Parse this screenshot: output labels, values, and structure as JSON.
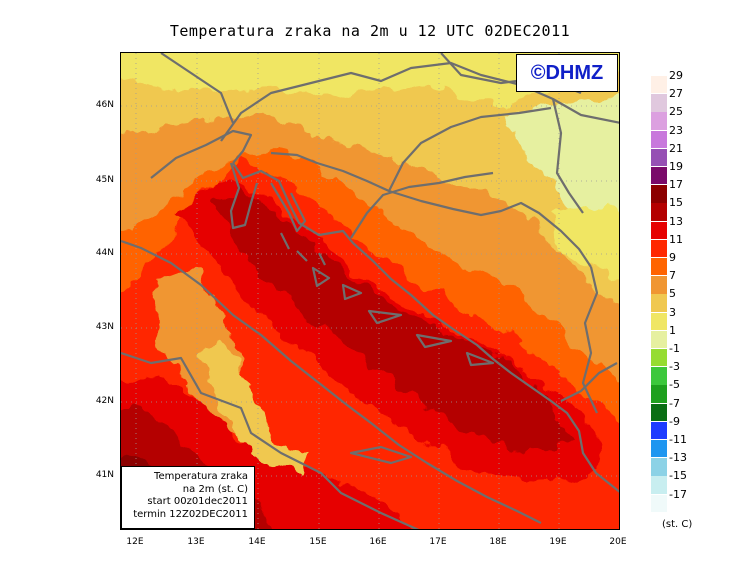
{
  "title": "Temperatura zraka na 2m u 12 UTC 02DEC2011",
  "logo": "©DHMZ",
  "info_box": [
    "Temperatura zraka",
    "na 2m (st. C)",
    "start 00z01dec2011",
    "termin 12Z02DEC2011"
  ],
  "map": {
    "lat_labels": [
      "46N",
      "45N",
      "44N",
      "43N",
      "42N",
      "41N"
    ],
    "lon_labels": [
      "12E",
      "13E",
      "14E",
      "15E",
      "16E",
      "17E",
      "18E",
      "19E",
      "20E"
    ]
  },
  "legend": {
    "unit": "(st. C)",
    "labels": [
      "29",
      "27",
      "25",
      "23",
      "21",
      "19",
      "17",
      "15",
      "13",
      "11",
      "9",
      "7",
      "5",
      "3",
      "1",
      "-1",
      "-3",
      "-5",
      "-7",
      "-9",
      "-11",
      "-13",
      "-15",
      "-17"
    ],
    "colors": [
      "#fff0e6",
      "#e0c8de",
      "#dca0e0",
      "#c878dc",
      "#9650b4",
      "#7a0a6a",
      "#8c0000",
      "#b40000",
      "#e60000",
      "#ff2800",
      "#ff6400",
      "#f09632",
      "#f0c850",
      "#f0e664",
      "#e6f0a0",
      "#96dc32",
      "#3cc83c",
      "#1ea01e",
      "#0a6e14",
      "#1e3cff",
      "#1e96f0",
      "#8cd2e6",
      "#c8eef0",
      "#f0fafa"
    ]
  }
}
